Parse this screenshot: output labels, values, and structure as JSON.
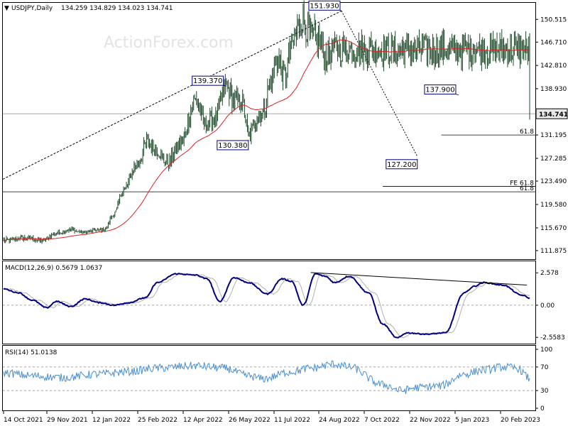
{
  "header": {
    "symbol": "USDJPY,Daily",
    "ohlc": "134.259 134.829 134.023 134.741"
  },
  "watermark": "ActionForex.com",
  "colors": {
    "candle": "#1f4a2a",
    "ma": "#dd2222",
    "macd": "#000080",
    "signal": "#b0b0b0",
    "rsi": "#4a90d0",
    "price_tag_bg": "#e8e8e8",
    "label_border": "#000080"
  },
  "chart_data": [
    {
      "type": "candlestick",
      "title": "USDJPY,Daily",
      "ylim": [
        110.8,
        152.8
      ],
      "x_tick_labels": [
        "14 Oct 2021",
        "29 Nov 2021",
        "12 Jan 2022",
        "25 Feb 2022",
        "12 Apr 2022",
        "26 May 2022",
        "11 Jul 2022",
        "24 Aug 2022",
        "7 Oct 2022",
        "22 Nov 2022",
        "5 Jan 2023",
        "20 Feb 2023"
      ],
      "y_tick_labels": [
        "150.515",
        "146.710",
        "142.810",
        "138.930",
        "131.195",
        "127.285",
        "123.490",
        "119.580",
        "115.670",
        "111.875"
      ],
      "y_ticks": [
        150.515,
        146.71,
        142.81,
        138.93,
        131.195,
        127.285,
        123.49,
        119.58,
        115.67,
        111.875
      ],
      "close_anchors": {
        "x": [
          0,
          25,
          40,
          55,
          70,
          82,
          95,
          105,
          115,
          125,
          138,
          150,
          160,
          170,
          185,
          200,
          210,
          220,
          232,
          240,
          248,
          256,
          263,
          270,
          278,
          285,
          293,
          300,
          310,
          320,
          328,
          335,
          345
        ],
        "y": [
          113.6,
          114.0,
          113.5,
          114.8,
          115.4,
          114.9,
          115.2,
          115.4,
          118.0,
          122.0,
          126.0,
          130.0,
          128.5,
          126.5,
          130.0,
          137.0,
          133.0,
          134.0,
          139.37,
          137.0,
          136.5,
          131.0,
          134.0,
          135.0,
          140.0,
          144.0,
          141.0,
          146.0,
          150.5,
          148.0,
          147.0,
          144.5,
          145.5
        ]
      },
      "last_price": 134.741,
      "last_price_label": "134.741",
      "swing_labels": [
        {
          "text": "151.930",
          "price": 151.93,
          "bar": 352
        },
        {
          "text": "139.370",
          "price": 139.37,
          "bar": 232
        },
        {
          "text": "130.380",
          "price": 130.38,
          "bar": 255
        },
        {
          "text": "127.200",
          "price": 127.2,
          "bar": 431
        },
        {
          "text": "137.900",
          "price": 137.9,
          "bar": 474
        }
      ],
      "levels": [
        {
          "label": "61.8",
          "price": 131.195
        },
        {
          "label": "FE 61.8",
          "price": 122.6
        },
        {
          "label": "61.8",
          "price": 121.7
        }
      ]
    },
    {
      "type": "line",
      "title": "MACD(12,26,9) 0.5679 1.0637",
      "label": "MACD(12,26,9)",
      "values_label": "0.5679 1.0637",
      "ylim": [
        -3.0,
        3.1
      ],
      "y_tick_labels": [
        "2.578",
        "0.00",
        "-2.5583"
      ],
      "y_ticks": [
        2.578,
        0.0,
        -2.5583
      ],
      "macd_anchors": {
        "x": [
          0,
          15,
          30,
          45,
          55,
          70,
          85,
          100,
          115,
          130,
          148,
          160,
          180,
          200,
          212,
          225,
          240,
          255,
          275,
          290,
          300,
          312,
          325,
          335,
          345,
          360,
          380,
          395,
          410,
          420,
          440,
          460,
          480,
          490,
          500,
          520,
          540,
          548
        ],
        "y": [
          1.3,
          1.0,
          0.4,
          -0.2,
          0.3,
          -0.1,
          0.5,
          0.2,
          0.0,
          0.2,
          0.6,
          1.8,
          2.5,
          2.4,
          2.1,
          0.3,
          2.2,
          1.8,
          0.9,
          2.1,
          1.9,
          0.0,
          2.5,
          2.3,
          1.8,
          2.3,
          1.0,
          -1.5,
          -2.6,
          -2.2,
          -2.3,
          -2.2,
          1.0,
          1.5,
          1.8,
          1.6,
          0.8,
          0.57
        ]
      },
      "signal_lag": 6,
      "trendline": {
        "from": [
          320,
          2.6
        ],
        "to": [
          545,
          1.6
        ]
      }
    },
    {
      "type": "line",
      "title": "RSI(14) 51.0138",
      "label": "RSI(14)",
      "values_label": "51.0138",
      "ylim": [
        0,
        100
      ],
      "y_tick_labels": [
        "100",
        "70",
        "30",
        "0"
      ],
      "y_ticks": [
        100,
        70,
        30,
        0
      ],
      "levels": [
        70,
        30
      ],
      "rsi_anchors": {
        "x": [
          0,
          30,
          60,
          100,
          130,
          160,
          200,
          230,
          255,
          270,
          300,
          320,
          345,
          360,
          395,
          415,
          430,
          455,
          480,
          500,
          520,
          535,
          548
        ],
        "y": [
          60,
          55,
          52,
          58,
          62,
          68,
          72,
          68,
          55,
          50,
          62,
          68,
          75,
          70,
          40,
          30,
          35,
          38,
          58,
          65,
          70,
          68,
          51
        ]
      }
    }
  ]
}
